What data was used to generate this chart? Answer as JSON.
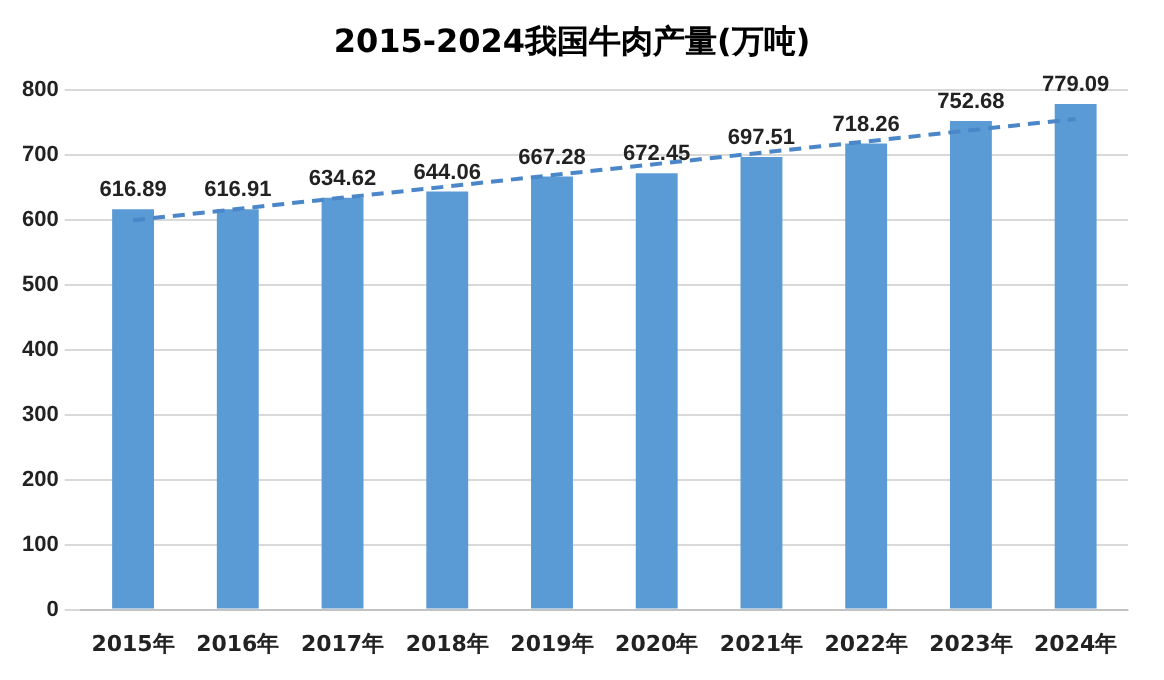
{
  "chart_data": {
    "type": "bar",
    "title": "2015-2024我国牛肉产量(万吨)",
    "categories": [
      "2015年",
      "2016年",
      "2017年",
      "2018年",
      "2019年",
      "2020年",
      "2021年",
      "2022年",
      "2023年",
      "2024年"
    ],
    "series": [
      {
        "color": "#5b9bd5",
        "values": [
          616.89,
          616.91,
          634.62,
          644.06,
          667.28,
          672.45,
          697.51,
          718.26,
          752.68,
          779.09
        ],
        "value_labels": [
          "616.89",
          "616.91",
          "634.62",
          "644.06",
          "667.28",
          "672.45",
          "697.51",
          "718.26",
          "752.68",
          "779.09"
        ]
      },
      {
        "type": "line",
        "color": "#4a86c8",
        "line_style": "dashed",
        "marker": "none",
        "x": [
          "2015年",
          "2024年"
        ],
        "values": [
          600,
          756
        ]
      }
    ],
    "ylim": [
      0,
      800
    ],
    "yticks": [
      0,
      100,
      200,
      300,
      400,
      500,
      600,
      700,
      800
    ],
    "grid": "y",
    "legend": false
  }
}
